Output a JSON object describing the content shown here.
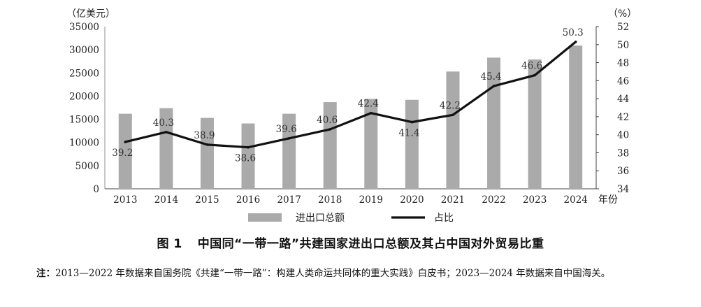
{
  "chart_data": {
    "type": "bar+line",
    "categories": [
      "2013",
      "2014",
      "2015",
      "2016",
      "2017",
      "2018",
      "2019",
      "2020",
      "2021",
      "2022",
      "2023",
      "2024"
    ],
    "series": [
      {
        "name": "进出口总额",
        "type": "bar",
        "axis": "left",
        "values": [
          16200,
          17400,
          15300,
          14100,
          16200,
          18700,
          19400,
          19200,
          25300,
          28300,
          27900,
          30900
        ],
        "color": "#aaaaaa"
      },
      {
        "name": "占比",
        "type": "line",
        "axis": "right",
        "values": [
          39.2,
          40.3,
          38.9,
          38.6,
          39.6,
          40.6,
          42.4,
          41.4,
          42.2,
          45.4,
          46.6,
          50.3
        ],
        "labels": [
          "39.2",
          "40.3",
          "38.9",
          "38.6",
          "39.6",
          "40.6",
          "42.4",
          "41.4",
          "42.2",
          "45.4",
          "46.6",
          "50.3"
        ],
        "color": "#111111"
      }
    ],
    "left_axis": {
      "unit": "（亿美元）",
      "range": [
        0,
        35000
      ],
      "ticks": [
        "0",
        "5000",
        "10000",
        "15000",
        "20000",
        "25000",
        "30000",
        "35000"
      ]
    },
    "right_axis": {
      "unit": "（%）",
      "range": [
        34,
        52
      ],
      "ticks": [
        "34",
        "36",
        "38",
        "40",
        "42",
        "44",
        "46",
        "48",
        "50",
        "52"
      ]
    },
    "x_unit": "年份",
    "legend_position": "bottom"
  },
  "caption": {
    "fig_num": "图 1",
    "title": "中国同“一带一路”共建国家进出口总额及其占中国对外贸易比重"
  },
  "note": {
    "label": "注：",
    "text": "2013—2022 年数据来自国务院《共建“一带一路”：构建人类命运共同体的重大实践》白皮书；2023—2024 年数据来自中国海关。"
  }
}
